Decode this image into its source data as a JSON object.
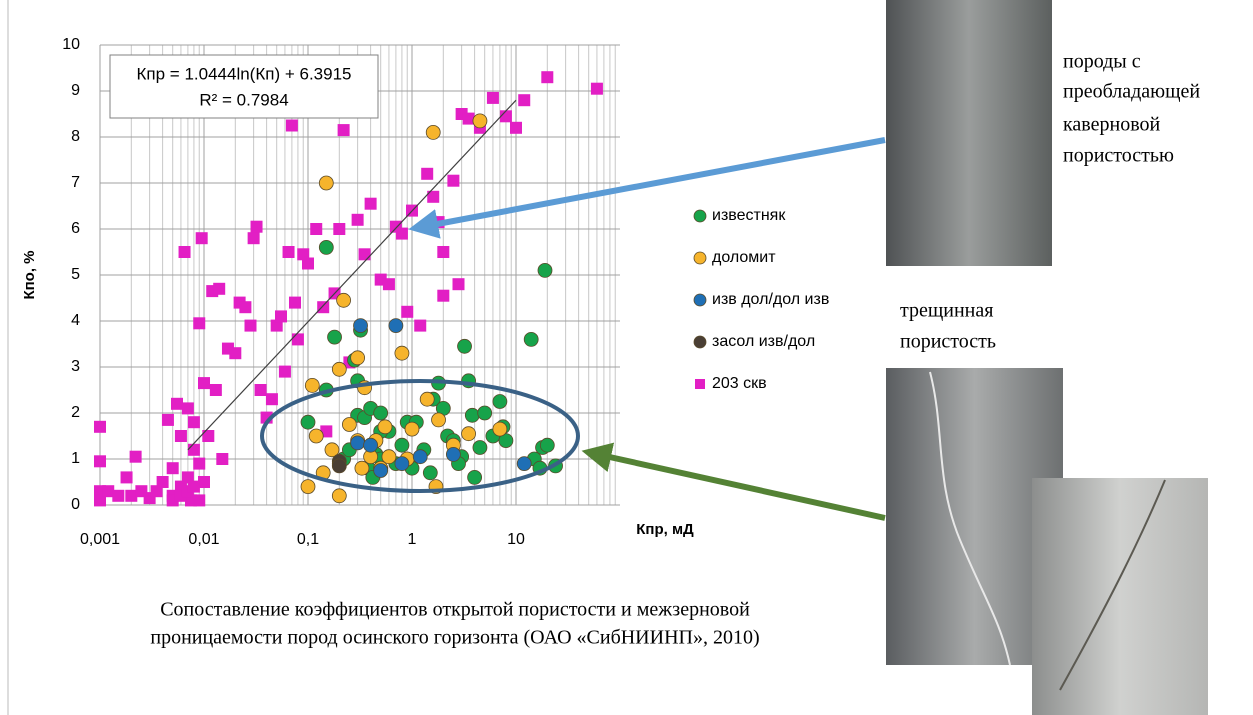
{
  "chart_data": {
    "type": "scatter",
    "xlabel": "Кпр, мД",
    "ylabel": "Кпо, %",
    "xscale": "log",
    "xlim": [
      0.001,
      100
    ],
    "ylim": [
      0,
      10
    ],
    "xticks": [
      {
        "value": 0.001,
        "label": "0,001"
      },
      {
        "value": 0.01,
        "label": "0,01"
      },
      {
        "value": 0.1,
        "label": "0,1"
      },
      1,
      10
    ],
    "yticks": [
      0,
      1,
      2,
      3,
      4,
      5,
      6,
      7,
      8,
      9,
      10
    ],
    "grid": true,
    "minor_grid": true,
    "legend": "right",
    "trendline": {
      "equation": "Кпр = 1.0444ln(Кп) + 6.3915",
      "r2": "R² = 0.7984",
      "x": [
        0.007,
        10
      ],
      "y": [
        1.2,
        8.8
      ],
      "color": "#404040"
    },
    "series": [
      {
        "name": "203 скв",
        "marker": "square",
        "color": "#e21fc4",
        "x": [
          0.001,
          0.001,
          0.001,
          0.001,
          0.0012,
          0.0015,
          0.0018,
          0.002,
          0.0022,
          0.0025,
          0.003,
          0.0035,
          0.004,
          0.0045,
          0.005,
          0.005,
          0.0055,
          0.006,
          0.006,
          0.0065,
          0.007,
          0.007,
          0.0075,
          0.008,
          0.008,
          0.009,
          0.009,
          0.0095,
          0.01,
          0.01,
          0.011,
          0.012,
          0.013,
          0.014,
          0.015,
          0.017,
          0.02,
          0.022,
          0.025,
          0.028,
          0.03,
          0.032,
          0.035,
          0.04,
          0.045,
          0.05,
          0.055,
          0.06,
          0.065,
          0.07,
          0.075,
          0.08,
          0.09,
          0.1,
          0.12,
          0.14,
          0.15,
          0.18,
          0.2,
          0.22,
          0.25,
          0.3,
          0.35,
          0.4,
          0.5,
          0.6,
          0.7,
          0.8,
          0.9,
          1.0,
          1.2,
          1.4,
          1.6,
          1.8,
          2.0,
          2.5,
          3.0,
          3.5,
          4.5,
          6,
          8,
          10,
          12,
          20,
          60,
          2.8,
          2.0,
          0.005,
          0.006,
          0.007,
          0.008,
          0.009
        ],
        "values": [
          0.3,
          0.1,
          0.95,
          1.7,
          0.3,
          0.2,
          0.6,
          0.2,
          1.05,
          0.3,
          0.15,
          0.3,
          0.5,
          1.85,
          0.2,
          0.8,
          2.2,
          0.4,
          1.5,
          5.5,
          0.6,
          2.1,
          0.1,
          1.2,
          1.8,
          0.9,
          3.95,
          5.8,
          2.65,
          0.5,
          1.5,
          4.65,
          2.5,
          4.7,
          1.0,
          3.4,
          3.3,
          4.4,
          4.3,
          3.9,
          5.8,
          6.05,
          2.5,
          1.9,
          2.3,
          3.9,
          4.1,
          2.9,
          5.5,
          8.25,
          4.4,
          3.6,
          5.45,
          5.25,
          6.0,
          4.3,
          1.6,
          4.6,
          6.0,
          8.15,
          3.1,
          6.2,
          5.45,
          6.55,
          4.9,
          4.8,
          6.05,
          5.9,
          4.2,
          6.4,
          3.9,
          7.2,
          6.7,
          6.15,
          4.55,
          7.05,
          8.5,
          8.4,
          8.2,
          8.85,
          8.45,
          8.2,
          8.8,
          9.3,
          9.05,
          4.8,
          5.5,
          0.1,
          0.2,
          0.3,
          0.4,
          0.1
        ]
      },
      {
        "name": "известняк",
        "marker": "circle",
        "color": "#17a34a",
        "x": [
          0.1,
          0.15,
          0.15,
          0.18,
          0.2,
          0.22,
          0.25,
          0.28,
          0.3,
          0.3,
          0.32,
          0.35,
          0.38,
          0.4,
          0.42,
          0.45,
          0.5,
          0.5,
          0.6,
          0.7,
          0.8,
          0.9,
          1.0,
          1.1,
          1.3,
          1.5,
          1.6,
          1.8,
          2.0,
          2.2,
          2.5,
          3,
          3.2,
          3.5,
          3.8,
          4,
          4.5,
          5,
          6,
          7,
          7.5,
          8,
          14,
          15,
          17,
          18,
          19,
          20,
          24,
          0.5,
          2.8
        ],
        "values": [
          1.8,
          2.5,
          5.6,
          3.65,
          0.9,
          1.0,
          1.2,
          3.15,
          1.95,
          2.7,
          3.8,
          1.9,
          0.8,
          2.1,
          0.6,
          1.1,
          2.0,
          1.0,
          1.6,
          0.9,
          1.3,
          1.8,
          0.8,
          1.8,
          1.2,
          0.7,
          2.3,
          2.65,
          2.1,
          1.5,
          1.4,
          1.05,
          3.45,
          2.7,
          1.95,
          0.6,
          1.25,
          2.0,
          1.5,
          2.25,
          1.7,
          1.4,
          3.6,
          1.0,
          0.8,
          1.25,
          5.1,
          1.3,
          0.85,
          1.6,
          0.9
        ]
      },
      {
        "name": "доломит",
        "marker": "circle",
        "color": "#f6b42c",
        "x": [
          0.1,
          0.11,
          0.12,
          0.14,
          0.15,
          0.17,
          0.2,
          0.2,
          0.22,
          0.25,
          0.3,
          0.33,
          0.35,
          0.4,
          0.45,
          0.5,
          0.55,
          0.6,
          0.8,
          0.9,
          1.0,
          1.4,
          1.6,
          1.7,
          1.8,
          2.5,
          3.5,
          4.5,
          7,
          0.3
        ],
        "values": [
          0.4,
          2.6,
          1.5,
          0.7,
          7.0,
          1.2,
          0.2,
          2.95,
          4.45,
          1.75,
          3.2,
          0.8,
          2.55,
          1.05,
          1.4,
          0.8,
          1.7,
          1.05,
          3.3,
          1.0,
          1.65,
          2.3,
          8.1,
          0.4,
          1.85,
          1.3,
          1.55,
          8.35,
          1.65,
          1.4
        ]
      },
      {
        "name": "изв дол/дол изв",
        "marker": "circle",
        "color": "#1f6fb5",
        "x": [
          0.3,
          0.32,
          0.4,
          0.5,
          0.7,
          0.8,
          1.2,
          2.5,
          12
        ],
        "values": [
          1.35,
          3.9,
          1.3,
          0.75,
          3.9,
          0.9,
          1.05,
          1.1,
          0.9
        ]
      },
      {
        "name": "засол изв/дол",
        "marker": "circle",
        "color": "#4a3f35",
        "x": [
          0.2,
          0.2
        ],
        "values": [
          0.95,
          0.85
        ]
      }
    ],
    "legend_order": [
      1,
      2,
      3,
      4,
      0
    ]
  },
  "caption": [
    "Сопоставление коэффициентов открытой пористости и межзерновой",
    "проницаемости пород осинского горизонта (ОАО «СибНИИНП», 2010)"
  ],
  "photo_labels": {
    "cavern": [
      "породы с",
      "преобладающей",
      "каверновой",
      "пористостью"
    ],
    "fracture": [
      "трещинная",
      "пористость"
    ]
  }
}
